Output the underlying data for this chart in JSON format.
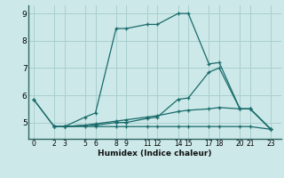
{
  "xlabel": "Humidex (Indice chaleur)",
  "background_color": "#cce8e8",
  "grid_color": "#aacfcf",
  "line_color": "#1a6b6b",
  "xlim": [
    -0.5,
    24
  ],
  "ylim": [
    4.4,
    9.3
  ],
  "xticks": [
    0,
    2,
    3,
    5,
    6,
    8,
    9,
    11,
    12,
    14,
    15,
    17,
    18,
    20,
    21,
    23
  ],
  "yticks": [
    5,
    6,
    7,
    8,
    9
  ],
  "series": [
    {
      "x": [
        0,
        2,
        3,
        5,
        6,
        8,
        9,
        11,
        12,
        14,
        15,
        17,
        18,
        20,
        21,
        23
      ],
      "y": [
        5.85,
        4.85,
        4.85,
        5.2,
        5.35,
        8.45,
        8.45,
        8.6,
        8.6,
        9.0,
        9.0,
        7.15,
        7.2,
        5.5,
        5.5,
        4.75
      ]
    },
    {
      "x": [
        0,
        2,
        3,
        5,
        6,
        8,
        9,
        11,
        12,
        14,
        15,
        17,
        18,
        20,
        21,
        23
      ],
      "y": [
        5.85,
        4.85,
        4.85,
        4.9,
        4.9,
        5.0,
        5.0,
        5.15,
        5.2,
        5.85,
        5.9,
        6.85,
        7.0,
        5.5,
        5.5,
        4.75
      ]
    },
    {
      "x": [
        2,
        3,
        5,
        6,
        8,
        9,
        11,
        12,
        14,
        15,
        17,
        18,
        20,
        21,
        23
      ],
      "y": [
        4.85,
        4.85,
        4.85,
        4.85,
        4.85,
        4.85,
        4.85,
        4.85,
        4.85,
        4.85,
        4.85,
        4.85,
        4.85,
        4.85,
        4.75
      ]
    },
    {
      "x": [
        2,
        3,
        5,
        6,
        8,
        9,
        11,
        12,
        14,
        15,
        17,
        18,
        20,
        21,
        23
      ],
      "y": [
        4.85,
        4.85,
        4.9,
        4.95,
        5.05,
        5.1,
        5.2,
        5.25,
        5.4,
        5.45,
        5.5,
        5.55,
        5.5,
        5.5,
        4.75
      ]
    }
  ]
}
